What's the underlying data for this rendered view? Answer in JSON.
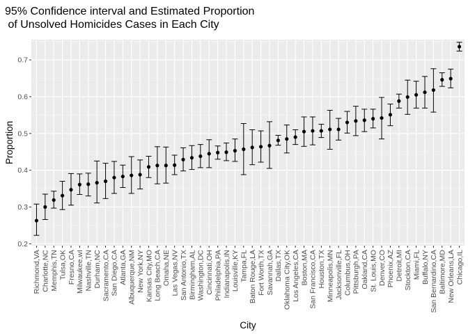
{
  "chart_data": {
    "type": "scatter",
    "title_lines": [
      "95% Confidence interval and Estimated Proportion",
      " of Unsolved Homicides Cases in Each City"
    ],
    "xlabel": "City",
    "ylabel": "Proportion",
    "ylim": [
      0.195,
      0.755
    ],
    "yticks": [
      0.2,
      0.3,
      0.4,
      0.5,
      0.6,
      0.7
    ],
    "ytick_labels": [
      "0.2",
      "0.3",
      "0.4",
      "0.5",
      "0.6",
      "0.7"
    ],
    "grid": true,
    "colors": {
      "panel": "#ebebeb",
      "grid_major": "#ffffff",
      "grid_minor": "#f5f5f5",
      "point": "#000000"
    },
    "categories": [
      "Richmond,VA",
      "Charlotte,NC",
      "Memphis,TN",
      "Tulsa,OK",
      "Fresno,CA",
      "Milwaukee,wI",
      "Nashville,TN",
      "Durham,NC",
      "Sacramento,CA",
      "San Diego,CA",
      "Atlanta,GA",
      "Albuquerque,NM",
      "New York,NY",
      "Kansas City,MO",
      "Long Beach,CA",
      "Omaha,NE",
      "Las Vegas,NV",
      "San Antonio,TX",
      "Birmingham,AL",
      "Washington,DC",
      "Cincinnati,OH",
      "Philadelphia,PA",
      "Indianapolis,IN",
      "Louisville,KY",
      "Tampa,FL",
      "Baton Rouge,LA",
      "Fort Worth,TX",
      "Savannah,GA",
      "Dallas,TX",
      "Oklahoma City,OK",
      "Los Angeles,CA",
      "Boston,MA",
      "San Francisco,CA",
      "Houston,TX",
      "Minneapolis,MN",
      "Jacksonville,FL",
      "Columbus,OH",
      "Pittsburgh,PA",
      "Oakland,CA",
      "St. Louis,MO",
      "Denver,CO",
      "Phoenix,AZ",
      "Detroit,MI",
      "Stockton,CA",
      "Miami,FL",
      "Buffalo,NY",
      "San Bernardino,CA",
      "Baltimore,MD",
      "New Orleans,LA",
      "Chicago,IL"
    ],
    "estimate": [
      0.263,
      0.3,
      0.319,
      0.331,
      0.347,
      0.361,
      0.362,
      0.366,
      0.37,
      0.38,
      0.383,
      0.386,
      0.388,
      0.409,
      0.413,
      0.413,
      0.414,
      0.429,
      0.434,
      0.438,
      0.445,
      0.448,
      0.449,
      0.453,
      0.457,
      0.462,
      0.464,
      0.467,
      0.481,
      0.485,
      0.49,
      0.505,
      0.507,
      0.507,
      0.511,
      0.511,
      0.53,
      0.534,
      0.536,
      0.54,
      0.542,
      0.551,
      0.588,
      0.599,
      0.605,
      0.612,
      0.618,
      0.646,
      0.649,
      0.736
    ],
    "conf_low": [
      0.223,
      0.266,
      0.297,
      0.293,
      0.305,
      0.334,
      0.33,
      0.311,
      0.323,
      0.337,
      0.353,
      0.337,
      0.349,
      0.38,
      0.363,
      0.365,
      0.388,
      0.398,
      0.402,
      0.407,
      0.407,
      0.43,
      0.426,
      0.424,
      0.388,
      0.415,
      0.422,
      0.405,
      0.468,
      0.447,
      0.47,
      0.465,
      0.469,
      0.489,
      0.457,
      0.482,
      0.501,
      0.494,
      0.505,
      0.515,
      0.485,
      0.521,
      0.569,
      0.552,
      0.569,
      0.569,
      0.558,
      0.628,
      0.624,
      0.724
    ],
    "conf_high": [
      0.308,
      0.335,
      0.343,
      0.37,
      0.391,
      0.39,
      0.392,
      0.425,
      0.419,
      0.424,
      0.414,
      0.437,
      0.428,
      0.438,
      0.464,
      0.463,
      0.441,
      0.461,
      0.467,
      0.47,
      0.483,
      0.466,
      0.474,
      0.485,
      0.527,
      0.51,
      0.507,
      0.532,
      0.495,
      0.523,
      0.51,
      0.545,
      0.545,
      0.525,
      0.563,
      0.541,
      0.56,
      0.574,
      0.566,
      0.566,
      0.598,
      0.58,
      0.607,
      0.645,
      0.642,
      0.655,
      0.676,
      0.665,
      0.675,
      0.748
    ]
  }
}
